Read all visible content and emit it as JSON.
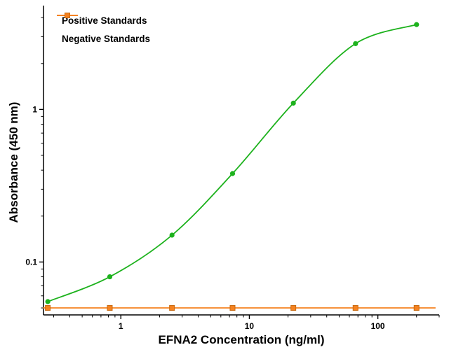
{
  "chart_data": {
    "type": "line",
    "title": "",
    "xlabel": "EFNA2 Concentration (ng/ml)",
    "ylabel": "Absorbance (450 nm)",
    "x_scale": "log",
    "y_scale": "log",
    "xlim": [
      0.25,
      300
    ],
    "ylim": [
      0.045,
      4.5
    ],
    "x_ticks": [
      1,
      10,
      100
    ],
    "y_ticks": [
      0.1,
      1
    ],
    "grid": false,
    "legend_position": "top-left-inside",
    "x": [
      0.27,
      0.82,
      2.5,
      7.4,
      22,
      67,
      200
    ],
    "series": [
      {
        "name": "Positive Standards",
        "color": "#1db21d",
        "marker": "circle",
        "line_style": "smooth",
        "values": [
          0.055,
          0.08,
          0.15,
          0.38,
          1.1,
          2.7,
          3.6
        ]
      },
      {
        "name": "Negative Standards",
        "color": "#f58220",
        "marker": "square",
        "marker_stroke": "#c96a10",
        "line_style": "flat-extended",
        "values": [
          0.05,
          0.05,
          0.05,
          0.05,
          0.05,
          0.05,
          0.05
        ]
      }
    ]
  }
}
